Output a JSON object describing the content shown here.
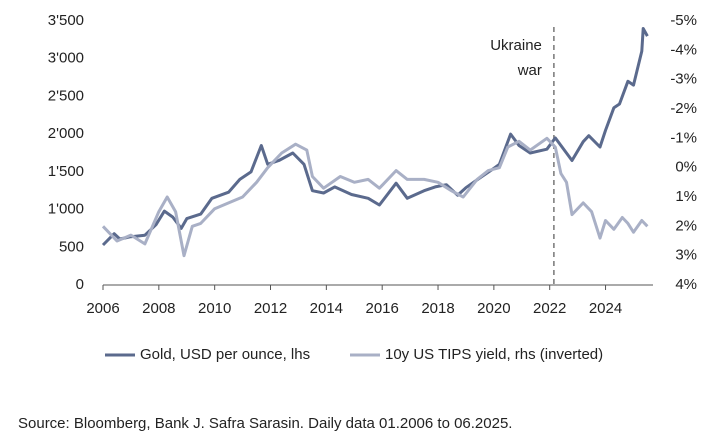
{
  "chart_data": {
    "type": "line",
    "xlim": [
      2006,
      2025.7
    ],
    "xticks": [
      2006,
      2008,
      2010,
      2012,
      2014,
      2016,
      2018,
      2020,
      2022,
      2024
    ],
    "ylim": [
      0,
      3500
    ],
    "yticks": [
      0,
      500,
      {
        "value": 1000,
        "label": "1'000"
      },
      {
        "value": 1500,
        "label": "1'500"
      },
      {
        "value": 2000,
        "label": "2'000"
      },
      {
        "value": 2500,
        "label": "2'500"
      },
      {
        "value": 3000,
        "label": "3'000"
      },
      {
        "value": 3500,
        "label": "3'500"
      }
    ],
    "y2lim": [
      4,
      -5
    ],
    "y2ticks": [
      {
        "value": -5,
        "label": "-5%"
      },
      {
        "value": -4,
        "label": "-4%"
      },
      {
        "value": -3,
        "label": "-3%"
      },
      {
        "value": -2,
        "label": "-2%"
      },
      {
        "value": -1,
        "label": "-1%"
      },
      {
        "value": 0,
        "label": "0%"
      },
      {
        "value": 1,
        "label": "1%"
      },
      {
        "value": 2,
        "label": "2%"
      },
      {
        "value": 3,
        "label": "3%"
      },
      {
        "value": 4,
        "label": "4%"
      }
    ],
    "series": [
      {
        "name": "Gold, USD per ounce, lhs",
        "color": "#5b6a8d",
        "x": [
          2006.0,
          2006.4,
          2006.6,
          2007.0,
          2007.5,
          2007.9,
          2008.2,
          2008.5,
          2008.8,
          2009.0,
          2009.5,
          2009.9,
          2010.5,
          2010.9,
          2011.3,
          2011.67,
          2011.9,
          2012.3,
          2012.8,
          2013.2,
          2013.5,
          2013.9,
          2014.3,
          2014.9,
          2015.5,
          2015.9,
          2016.5,
          2016.9,
          2017.5,
          2017.9,
          2018.3,
          2018.7,
          2019.0,
          2019.5,
          2019.9,
          2020.2,
          2020.6,
          2020.9,
          2021.3,
          2021.9,
          2022.2,
          2022.8,
          2023.2,
          2023.4,
          2023.8,
          2024.0,
          2024.3,
          2024.5,
          2024.8,
          2025.0,
          2025.3,
          2025.35,
          2025.5
        ],
        "values": [
          530,
          680,
          610,
          640,
          660,
          800,
          980,
          900,
          750,
          880,
          940,
          1150,
          1230,
          1400,
          1500,
          1850,
          1600,
          1650,
          1750,
          1600,
          1250,
          1220,
          1300,
          1200,
          1150,
          1060,
          1350,
          1150,
          1250,
          1300,
          1330,
          1190,
          1290,
          1420,
          1520,
          1600,
          2000,
          1850,
          1750,
          1800,
          1950,
          1650,
          1900,
          1980,
          1830,
          2050,
          2350,
          2400,
          2700,
          2650,
          3100,
          3400,
          3300
        ]
      },
      {
        "name": "10y US TIPS yield, rhs (inverted)",
        "color": "#a9b0c6",
        "axis": "y2",
        "x": [
          2006.0,
          2006.5,
          2007.0,
          2007.5,
          2008.0,
          2008.3,
          2008.6,
          2008.9,
          2009.2,
          2009.5,
          2010.0,
          2010.5,
          2011.0,
          2011.5,
          2011.9,
          2012.4,
          2012.9,
          2013.3,
          2013.5,
          2013.9,
          2014.5,
          2015.0,
          2015.5,
          2015.9,
          2016.5,
          2016.9,
          2017.5,
          2018.0,
          2018.5,
          2018.9,
          2019.4,
          2019.8,
          2020.2,
          2020.5,
          2020.9,
          2021.3,
          2021.9,
          2022.2,
          2022.4,
          2022.6,
          2022.8,
          2023.2,
          2023.5,
          2023.8,
          2024.0,
          2024.3,
          2024.6,
          2024.8,
          2025.0,
          2025.3,
          2025.5
        ],
        "values": [
          2.0,
          2.5,
          2.3,
          2.6,
          1.5,
          1.0,
          1.5,
          3.0,
          2.0,
          1.9,
          1.4,
          1.2,
          1.0,
          0.5,
          0.0,
          -0.5,
          -0.8,
          -0.6,
          0.3,
          0.7,
          0.3,
          0.5,
          0.4,
          0.7,
          0.1,
          0.4,
          0.4,
          0.5,
          0.8,
          1.0,
          0.4,
          0.1,
          0.0,
          -0.7,
          -0.9,
          -0.6,
          -1.0,
          -0.7,
          0.2,
          0.5,
          1.6,
          1.2,
          1.5,
          2.4,
          1.8,
          2.1,
          1.7,
          1.9,
          2.2,
          1.8,
          2.0
        ]
      }
    ],
    "annotation": {
      "x": 2022.15,
      "lines": [
        "Ukraine",
        "war"
      ]
    },
    "source": "Source: Bloomberg, Bank J. Safra Sarasin. Daily data 01.2006 to 06.2025."
  }
}
